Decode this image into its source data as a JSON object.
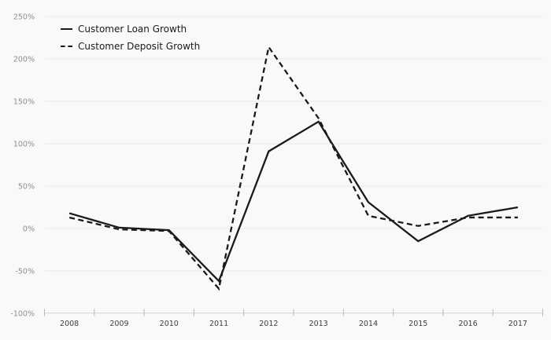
{
  "chart_data": {
    "type": "line",
    "categories": [
      "2008",
      "2009",
      "2010",
      "2011",
      "2012",
      "2013",
      "2014",
      "2015",
      "2016",
      "2017"
    ],
    "series": [
      {
        "name": "Customer Loan Growth",
        "style": "solid",
        "values": [
          18,
          1,
          -2,
          -62,
          91,
          126,
          31,
          -15,
          15,
          25
        ]
      },
      {
        "name": "Customer Deposit Growth",
        "style": "dashed",
        "values": [
          13,
          -1,
          -3,
          -71,
          214,
          130,
          15,
          3,
          13,
          13
        ]
      }
    ],
    "title": "",
    "xlabel": "",
    "ylabel": "",
    "ylim": [
      -100,
      250
    ],
    "yticks": [
      250,
      200,
      150,
      100,
      50,
      0,
      -50,
      -100
    ],
    "ytick_suffix": "%",
    "grid": true,
    "legend_position": "top-left",
    "colors": {
      "line": "#1a1a1a",
      "grid": "#e9e9e9",
      "axis_line": "#d9dde3",
      "axis_tick": "#aeb8cf",
      "ytick_label": "#8f8f8f",
      "xtick_label": "#3d3d47",
      "background": "#f9f9f9"
    }
  }
}
